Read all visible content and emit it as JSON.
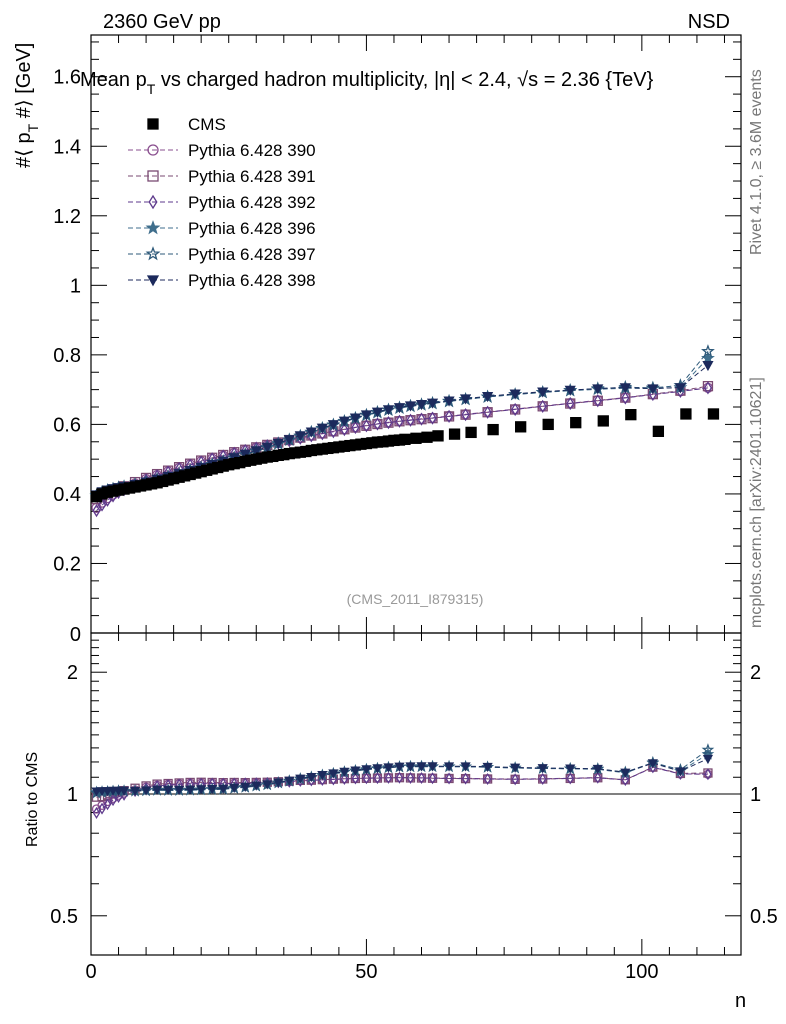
{
  "header": {
    "energy_label": "2360 GeV pp",
    "process_label": "NSD",
    "title": "Mean p_T vs charged hadron multiplicity, |η| < 2.4, √s = 2.36 {TeV}",
    "title_parts": [
      "Mean p",
      "T",
      " vs charged hadron multiplicity, ",
      "η| < 2.4, ",
      "s = 2.36 {TeV}"
    ],
    "watermark": "(CMS_2011_I879315)",
    "side_text_top": "Rivet 4.1.0, ≥ 3.6M events",
    "side_text_bottom": "mcplots.cern.ch [arXiv:2401.10621]"
  },
  "colors": {
    "cms": "#000000",
    "p390": "#8a4f8f",
    "p391": "#7a4a72",
    "p392": "#5e3a8c",
    "p396": "#3f6e8c",
    "p397": "#2e5a7a",
    "p398": "#1c2a5c"
  },
  "chart_data": {
    "type": "scatter",
    "title": "Mean p_T vs charged hadron multiplicity, |η| < 2.4, √s = 2.36 {TeV}",
    "xlabel": "n",
    "ylabel_parts": [
      "#⟨ p",
      "T",
      " #⟩ [GeV]"
    ],
    "ratio_ylabel": "Ratio to CMS",
    "xlim": [
      0,
      118
    ],
    "ylim": [
      0,
      1.72
    ],
    "ratio_ylim": [
      0.4,
      2.5
    ],
    "x_ticks": [
      "0",
      "50",
      "100"
    ],
    "x_tick_values": [
      0,
      50,
      100
    ],
    "y_ticks": [
      "0.2",
      "0.4",
      "0.6",
      "0.8",
      "1",
      "1.2",
      "1.4",
      "1.6"
    ],
    "y_tick_values": [
      0.2,
      0.4,
      0.6,
      0.8,
      1.0,
      1.2,
      1.4,
      1.6
    ],
    "y_zero_label": "0",
    "ratio_ticks": [
      "0.5",
      "1",
      "2"
    ],
    "ratio_tick_values": [
      0.5,
      1,
      2
    ],
    "legend_position": "top-left",
    "series": [
      {
        "name": "CMS",
        "key": "cms",
        "marker": "square",
        "fill": true,
        "dashed": false,
        "x": [
          1,
          2,
          3,
          4,
          5,
          6,
          7,
          8,
          9,
          10,
          11,
          12,
          13,
          14,
          15,
          16,
          17,
          18,
          19,
          20,
          21,
          22,
          23,
          24,
          25,
          26,
          27,
          28,
          29,
          30,
          31,
          32,
          33,
          34,
          35,
          36,
          37,
          38,
          39,
          40,
          41,
          42,
          43,
          44,
          45,
          46,
          47,
          48,
          49,
          50,
          51,
          52,
          53,
          54,
          55,
          56,
          57,
          59,
          61,
          63,
          66,
          69,
          73,
          78,
          83,
          88,
          93,
          98,
          103,
          108,
          113
        ],
        "values": [
          0.392,
          0.4,
          0.405,
          0.408,
          0.411,
          0.414,
          0.417,
          0.42,
          0.423,
          0.426,
          0.429,
          0.432,
          0.436,
          0.44,
          0.444,
          0.448,
          0.452,
          0.456,
          0.46,
          0.464,
          0.468,
          0.472,
          0.476,
          0.48,
          0.484,
          0.487,
          0.49,
          0.494,
          0.497,
          0.5,
          0.503,
          0.506,
          0.508,
          0.511,
          0.513,
          0.516,
          0.518,
          0.52,
          0.522,
          0.525,
          0.527,
          0.529,
          0.531,
          0.533,
          0.535,
          0.537,
          0.539,
          0.541,
          0.543,
          0.545,
          0.547,
          0.549,
          0.55,
          0.552,
          0.554,
          0.555,
          0.557,
          0.56,
          0.563,
          0.567,
          0.572,
          0.577,
          0.585,
          0.593,
          0.6,
          0.605,
          0.61,
          0.628,
          0.58,
          0.63,
          0.63
        ]
      },
      {
        "name": "Pythia 6.428 390",
        "key": "p390",
        "marker": "circle",
        "fill": false,
        "dashed": true,
        "x": [
          1,
          2,
          3,
          4,
          5,
          6,
          8,
          10,
          12,
          14,
          16,
          18,
          20,
          22,
          24,
          26,
          28,
          30,
          32,
          34,
          36,
          38,
          40,
          42,
          44,
          46,
          48,
          50,
          52,
          54,
          56,
          58,
          60,
          62,
          65,
          68,
          72,
          77,
          82,
          87,
          92,
          97,
          102,
          107,
          112
        ],
        "values": [
          0.36,
          0.375,
          0.388,
          0.398,
          0.408,
          0.416,
          0.43,
          0.443,
          0.454,
          0.465,
          0.475,
          0.485,
          0.494,
          0.502,
          0.51,
          0.518,
          0.526,
          0.533,
          0.54,
          0.547,
          0.554,
          0.561,
          0.568,
          0.574,
          0.58,
          0.586,
          0.592,
          0.597,
          0.602,
          0.606,
          0.61,
          0.613,
          0.616,
          0.619,
          0.624,
          0.629,
          0.636,
          0.644,
          0.653,
          0.661,
          0.669,
          0.677,
          0.686,
          0.695,
          0.705
        ]
      },
      {
        "name": "Pythia 6.428 391",
        "key": "p391",
        "marker": "square",
        "fill": false,
        "dashed": true,
        "x": [
          1,
          2,
          3,
          4,
          5,
          6,
          8,
          10,
          12,
          14,
          16,
          18,
          20,
          22,
          24,
          26,
          28,
          30,
          32,
          34,
          36,
          38,
          40,
          42,
          44,
          46,
          48,
          50,
          52,
          54,
          56,
          58,
          60,
          62,
          65,
          68,
          72,
          77,
          82,
          87,
          92,
          97,
          102,
          107,
          112
        ],
        "values": [
          0.385,
          0.394,
          0.402,
          0.409,
          0.416,
          0.422,
          0.434,
          0.446,
          0.457,
          0.467,
          0.477,
          0.487,
          0.496,
          0.504,
          0.512,
          0.52,
          0.527,
          0.534,
          0.541,
          0.548,
          0.555,
          0.562,
          0.568,
          0.574,
          0.58,
          0.586,
          0.591,
          0.596,
          0.601,
          0.605,
          0.609,
          0.612,
          0.615,
          0.618,
          0.623,
          0.628,
          0.635,
          0.643,
          0.652,
          0.66,
          0.668,
          0.677,
          0.687,
          0.697,
          0.71
        ]
      },
      {
        "name": "Pythia 6.428 392",
        "key": "p392",
        "marker": "diamond",
        "fill": false,
        "dashed": true,
        "x": [
          1,
          2,
          3,
          4,
          5,
          6,
          8,
          10,
          12,
          14,
          16,
          18,
          20,
          22,
          24,
          26,
          28,
          30,
          32,
          34,
          36,
          38,
          40,
          42,
          44,
          46,
          48,
          50,
          52,
          54,
          56,
          58,
          60,
          62,
          65,
          68,
          72,
          77,
          82,
          87,
          92,
          97,
          102,
          107,
          112
        ],
        "values": [
          0.352,
          0.368,
          0.382,
          0.394,
          0.404,
          0.412,
          0.427,
          0.44,
          0.452,
          0.463,
          0.473,
          0.483,
          0.492,
          0.501,
          0.509,
          0.517,
          0.525,
          0.532,
          0.539,
          0.546,
          0.553,
          0.56,
          0.567,
          0.573,
          0.579,
          0.585,
          0.591,
          0.596,
          0.601,
          0.605,
          0.609,
          0.612,
          0.615,
          0.618,
          0.623,
          0.628,
          0.635,
          0.643,
          0.652,
          0.66,
          0.668,
          0.676,
          0.686,
          0.695,
          0.705
        ]
      },
      {
        "name": "Pythia 6.428 396",
        "key": "p396",
        "marker": "star",
        "fill": true,
        "dashed": true,
        "x": [
          1,
          2,
          3,
          4,
          5,
          6,
          8,
          10,
          12,
          14,
          16,
          18,
          20,
          22,
          24,
          26,
          28,
          30,
          32,
          34,
          36,
          38,
          40,
          42,
          44,
          46,
          48,
          50,
          52,
          54,
          56,
          58,
          60,
          62,
          65,
          68,
          72,
          77,
          82,
          87,
          92,
          97,
          102,
          107,
          112
        ],
        "values": [
          0.396,
          0.405,
          0.41,
          0.414,
          0.418,
          0.421,
          0.427,
          0.434,
          0.442,
          0.45,
          0.458,
          0.467,
          0.476,
          0.485,
          0.494,
          0.504,
          0.514,
          0.524,
          0.534,
          0.545,
          0.556,
          0.567,
          0.578,
          0.589,
          0.599,
          0.609,
          0.618,
          0.627,
          0.635,
          0.642,
          0.648,
          0.653,
          0.657,
          0.661,
          0.667,
          0.672,
          0.679,
          0.686,
          0.692,
          0.697,
          0.701,
          0.704,
          0.703,
          0.706,
          0.79
        ]
      },
      {
        "name": "Pythia 6.428 397",
        "key": "p397",
        "marker": "star",
        "fill": false,
        "dashed": true,
        "x": [
          1,
          2,
          3,
          4,
          5,
          6,
          8,
          10,
          12,
          14,
          16,
          18,
          20,
          22,
          24,
          26,
          28,
          30,
          32,
          34,
          36,
          38,
          40,
          42,
          44,
          46,
          48,
          50,
          52,
          54,
          56,
          58,
          60,
          62,
          65,
          68,
          72,
          77,
          82,
          87,
          92,
          97,
          102,
          107,
          112
        ],
        "values": [
          0.394,
          0.404,
          0.41,
          0.414,
          0.418,
          0.421,
          0.427,
          0.434,
          0.441,
          0.449,
          0.457,
          0.466,
          0.475,
          0.484,
          0.493,
          0.503,
          0.513,
          0.523,
          0.533,
          0.544,
          0.555,
          0.566,
          0.577,
          0.588,
          0.598,
          0.608,
          0.617,
          0.626,
          0.634,
          0.641,
          0.647,
          0.652,
          0.656,
          0.66,
          0.666,
          0.672,
          0.679,
          0.686,
          0.692,
          0.698,
          0.703,
          0.707,
          0.705,
          0.712,
          0.81
        ]
      },
      {
        "name": "Pythia 6.428 398",
        "key": "p398",
        "marker": "triangle-down",
        "fill": true,
        "dashed": true,
        "x": [
          1,
          2,
          3,
          4,
          5,
          6,
          8,
          10,
          12,
          14,
          16,
          18,
          20,
          22,
          24,
          26,
          28,
          30,
          32,
          34,
          36,
          38,
          40,
          42,
          44,
          46,
          48,
          50,
          52,
          54,
          56,
          58,
          60,
          62,
          65,
          68,
          72,
          77,
          82,
          87,
          92,
          97,
          102,
          107,
          112
        ],
        "values": [
          0.398,
          0.407,
          0.412,
          0.416,
          0.419,
          0.422,
          0.428,
          0.435,
          0.443,
          0.451,
          0.459,
          0.468,
          0.477,
          0.486,
          0.495,
          0.505,
          0.515,
          0.525,
          0.535,
          0.546,
          0.557,
          0.568,
          0.579,
          0.59,
          0.6,
          0.61,
          0.619,
          0.628,
          0.636,
          0.643,
          0.649,
          0.654,
          0.658,
          0.662,
          0.668,
          0.674,
          0.681,
          0.688,
          0.694,
          0.699,
          0.703,
          0.706,
          0.703,
          0.706,
          0.77
        ]
      }
    ]
  }
}
